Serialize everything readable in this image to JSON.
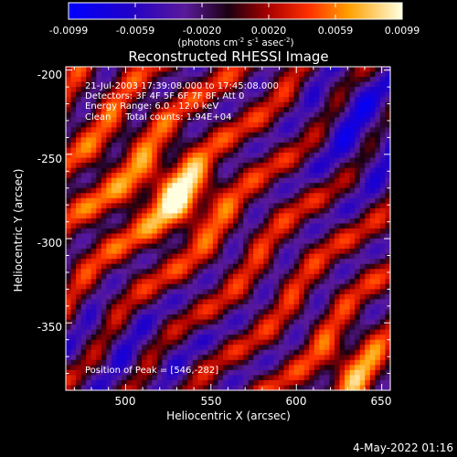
{
  "chart_data": {
    "type": "heatmap",
    "title": "Reconstructed RHESSI Image",
    "xlabel": "Heliocentric X (arcsec)",
    "ylabel": "Heliocentric Y (arcsec)",
    "xlim": [
      465,
      655
    ],
    "ylim": [
      -390,
      -198
    ],
    "x_ticks": [
      500,
      550,
      600,
      650
    ],
    "y_ticks": [
      -200,
      -250,
      -300,
      -350
    ],
    "colorbar": {
      "range": [
        -0.0099,
        0.0099
      ],
      "ticks": [
        "-0.0099",
        "-0.0059",
        "-0.0020",
        "0.0020",
        "0.0059",
        "0.0099"
      ],
      "unit_main": "(photons cm",
      "unit_sup1": "-2",
      "unit_s": " s",
      "unit_sup2": "-1",
      "unit_as": " asec",
      "unit_sup3": "-2",
      "unit_close": ")"
    },
    "annotations": [
      "21-Jul-2003 17:39:08.000 to 17:45:08.000",
      "Detectors: 3F 4F 5F 6F 7F 8F, Att 0",
      "Energy Range: 6.0 - 12.0 keV",
      "Clean     Total counts: 1.94E+04"
    ],
    "peak_label": "Position of Peak = [546,-282]",
    "peak": [
      546,
      -282
    ],
    "timestamp": "4-May-2022 01:16",
    "grid": false
  }
}
